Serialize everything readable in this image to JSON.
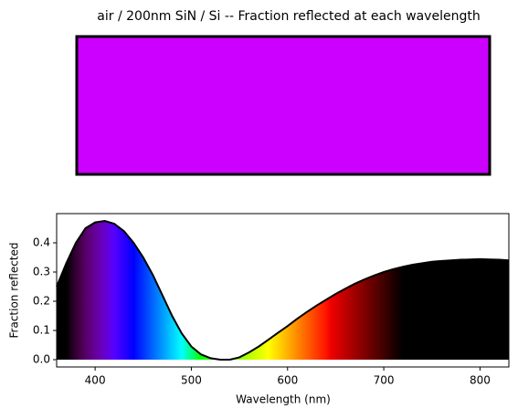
{
  "chart_data": [
    {
      "type": "swatch",
      "title": "air / 200nm SiN / Si -- Fraction reflected at each wavelength",
      "color": "#cc00ff"
    },
    {
      "type": "line",
      "xlabel": "Wavelength (nm)",
      "ylabel": "Fraction reflected",
      "x": [
        360,
        370,
        380,
        390,
        400,
        410,
        420,
        430,
        440,
        450,
        460,
        470,
        480,
        490,
        500,
        510,
        520,
        530,
        540,
        550,
        560,
        570,
        580,
        590,
        600,
        610,
        620,
        630,
        640,
        650,
        660,
        670,
        680,
        690,
        700,
        710,
        720,
        730,
        740,
        750,
        760,
        770,
        780,
        790,
        800,
        810,
        820,
        830
      ],
      "values": [
        0.25,
        0.33,
        0.4,
        0.45,
        0.47,
        0.475,
        0.465,
        0.44,
        0.4,
        0.35,
        0.29,
        0.22,
        0.15,
        0.09,
        0.045,
        0.018,
        0.005,
        0.0,
        0.0,
        0.008,
        0.025,
        0.045,
        0.068,
        0.092,
        0.115,
        0.14,
        0.163,
        0.185,
        0.205,
        0.225,
        0.243,
        0.26,
        0.275,
        0.288,
        0.3,
        0.31,
        0.318,
        0.325,
        0.33,
        0.335,
        0.338,
        0.34,
        0.342,
        0.343,
        0.344,
        0.343,
        0.342,
        0.34
      ],
      "color": "#000000",
      "xlim": [
        360,
        830
      ],
      "xticks": [
        400,
        500,
        600,
        700,
        800
      ],
      "ylim": [
        -0.025,
        0.5
      ],
      "yticks": [
        {
          "value": 0,
          "label": "0.0"
        },
        0.1,
        0.2,
        0.3,
        0.4
      ]
    }
  ]
}
